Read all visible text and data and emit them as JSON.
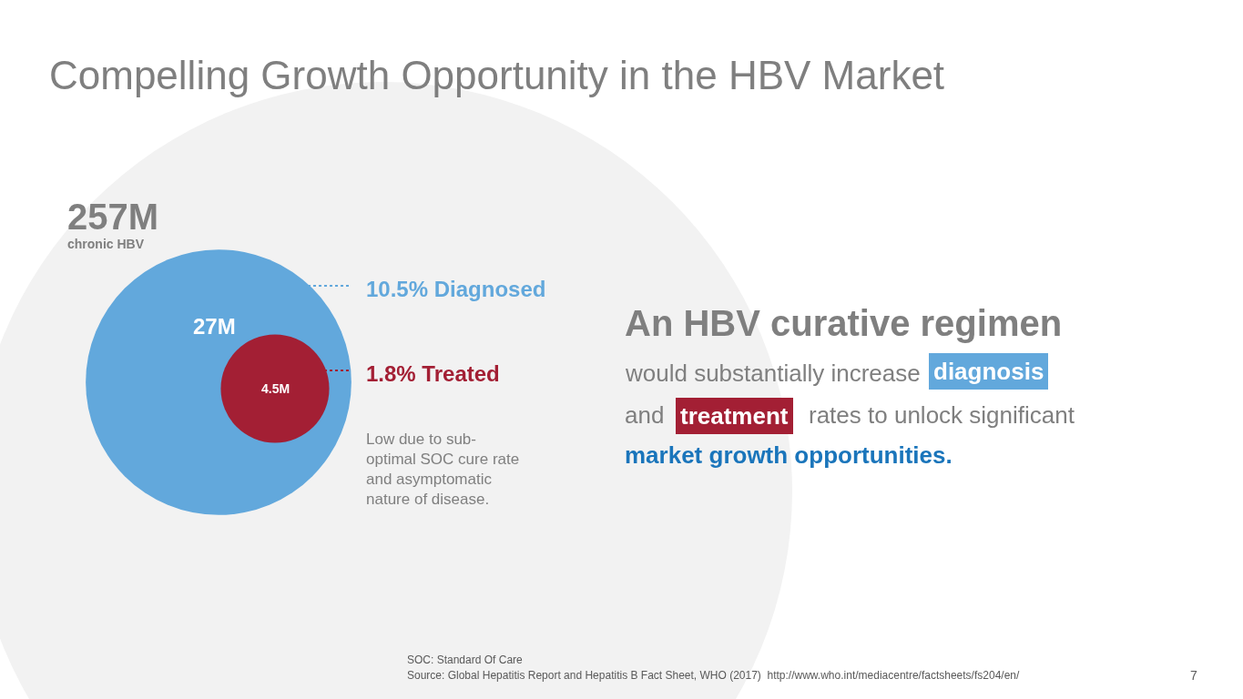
{
  "chart_data": {
    "type": "other",
    "title": "Compelling Growth Opportunity in the HBV Market",
    "categories": [
      "chronic HBV",
      null,
      null
    ],
    "values": [
      257,
      27,
      4.5
    ],
    "value_labels": [
      "257M",
      "27M",
      "4.5M"
    ],
    "colors": [
      "#f2f2f2",
      "#62a8dc",
      "#a31f34"
    ],
    "annotations": [
      "10.5% Diagnosed",
      "1.8% Treated",
      "Low due to sub-optimal SOC cure rate and asymptomatic nature of disease.",
      "An HBV curative regimen",
      "would substantially increase",
      "diagnosis",
      "and",
      "treatment",
      "rates to unlock significant",
      "market growth opportunities.",
      "SOC: Standard Of Care",
      "Source: Global Hepatitis Report and Hepatitis B Fact Sheet, WHO (2017)  http://www.who.int/mediacentre/factsheets/fs204/en/",
      "7"
    ]
  }
}
